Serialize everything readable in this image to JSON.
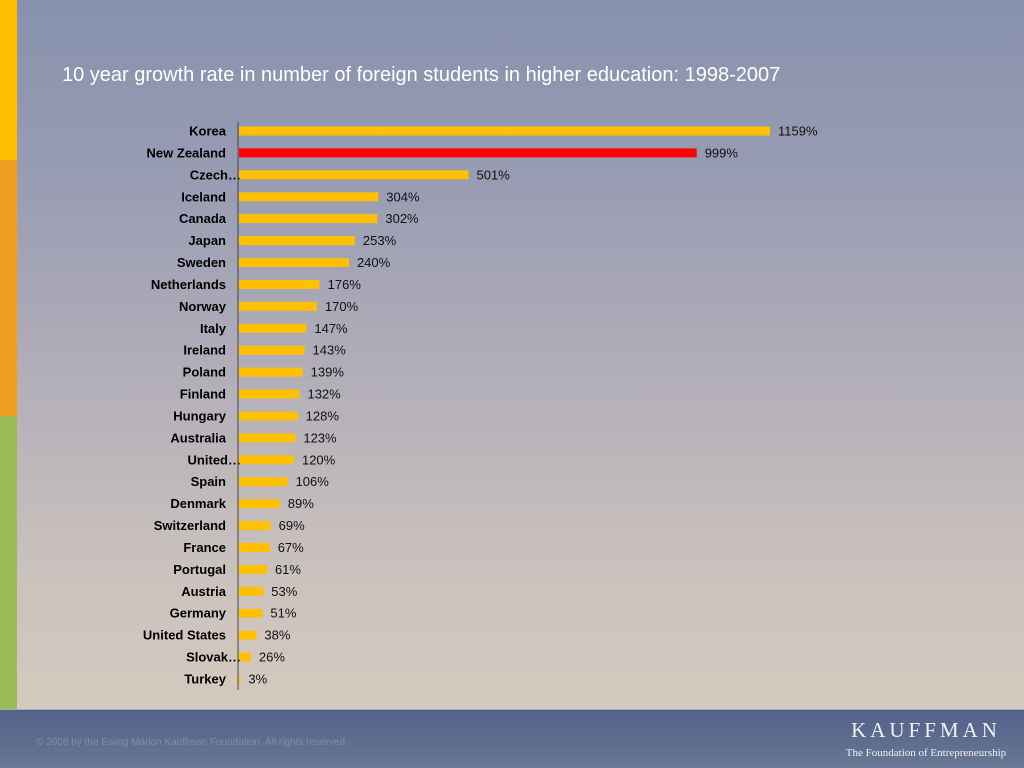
{
  "accent_stripe_colors": [
    "#ffc000",
    "#f0a020",
    "#9bbb59"
  ],
  "footer": {
    "copyright": "© 2008 by the Ewing Marion Kauffman Foundation. All rights reserved.",
    "logo_name": "KAUFFMAN",
    "logo_tagline": "The Foundation of Entrepreneurship"
  },
  "chart_data": {
    "type": "bar",
    "orientation": "horizontal",
    "title": "10 year growth rate in number of foreign students in higher education: 1998-2007",
    "xlabel": "",
    "ylabel": "",
    "grid": false,
    "legend": "none",
    "value_suffix": "%",
    "bar_color": "#ffc000",
    "highlight": {
      "index": 1,
      "color": "#ff0000"
    },
    "categories": [
      "Korea",
      "New Zealand",
      "Czech…",
      "Iceland",
      "Canada",
      "Japan",
      "Sweden",
      "Netherlands",
      "Norway",
      "Italy",
      "Ireland",
      "Poland",
      "Finland",
      "Hungary",
      "Australia",
      "United…",
      "Spain",
      "Denmark",
      "Switzerland",
      "France",
      "Portugal",
      "Austria",
      "Germany",
      "United States",
      "Slovak…",
      "Turkey"
    ],
    "values": [
      1159,
      999,
      501,
      304,
      302,
      253,
      240,
      176,
      170,
      147,
      143,
      139,
      132,
      128,
      123,
      120,
      106,
      89,
      69,
      67,
      61,
      53,
      51,
      38,
      26,
      3
    ]
  }
}
